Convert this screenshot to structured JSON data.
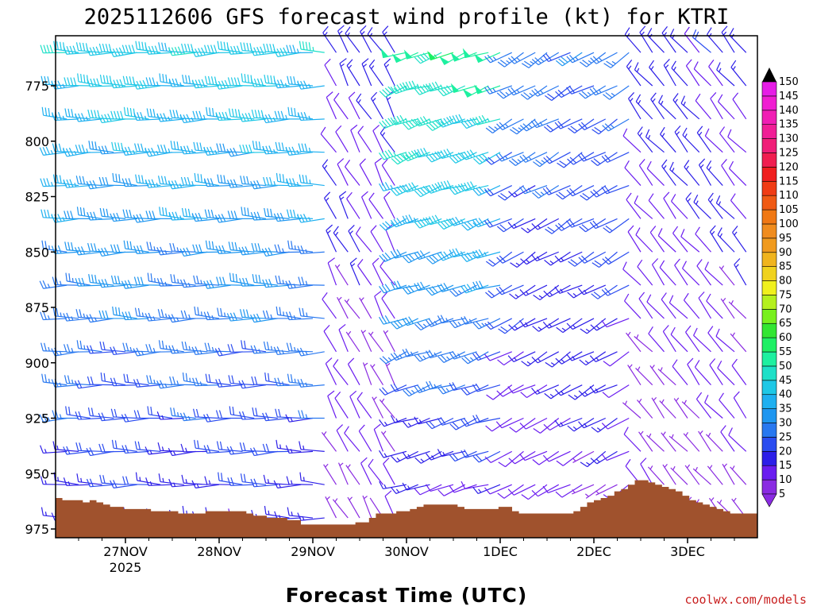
{
  "chart_data": {
    "type": "wind-barb-profile",
    "title": "2025112606 GFS forecast wind profile (kt) for KTRI",
    "xlabel": "Forecast Time (UTC)",
    "ylabel": "",
    "credit": "coolwx.com/models",
    "x_ticks": [
      {
        "label": "27NOV",
        "sublabel": "2025",
        "hour": 18
      },
      {
        "label": "28NOV",
        "sublabel": "",
        "hour": 42
      },
      {
        "label": "29NOV",
        "sublabel": "",
        "hour": 66
      },
      {
        "label": "30NOV",
        "sublabel": "",
        "hour": 90
      },
      {
        "label": "1DEC",
        "sublabel": "",
        "hour": 114
      },
      {
        "label": "2DEC",
        "sublabel": "",
        "hour": 138
      },
      {
        "label": "3DEC",
        "sublabel": "",
        "hour": 162
      }
    ],
    "xlim_hours": [
      0,
      180
    ],
    "y_ticks": [
      775,
      800,
      825,
      850,
      875,
      900,
      925,
      950,
      975
    ],
    "ylim_hpa": [
      980,
      755
    ],
    "levels_hpa": [
      760,
      775,
      790,
      805,
      820,
      835,
      850,
      865,
      880,
      895,
      910,
      925,
      940,
      955,
      970
    ],
    "time_step_hours": 3,
    "colorbar": {
      "levels": [
        5,
        10,
        15,
        20,
        25,
        30,
        35,
        40,
        45,
        50,
        55,
        60,
        65,
        70,
        75,
        80,
        85,
        90,
        95,
        100,
        105,
        110,
        115,
        120,
        125,
        130,
        135,
        140,
        145,
        150
      ],
      "colors": [
        "#8a2be2",
        "#6a1cf0",
        "#2c1ee8",
        "#2a4cf0",
        "#2878f0",
        "#1e96f0",
        "#1eb0f0",
        "#1ec8e6",
        "#1ee0c8",
        "#1ef0a0",
        "#1ef064",
        "#32e632",
        "#78f01e",
        "#b4f01e",
        "#f0f01e",
        "#f0d21e",
        "#f0b41e",
        "#f09a1e",
        "#f08c1e",
        "#f07814",
        "#f05a14",
        "#f03c14",
        "#f01e1e",
        "#f01e50",
        "#f01e78",
        "#f01e96",
        "#f01eb4",
        "#f01ed2",
        "#e61ee6",
        "#d21ef0"
      ]
    },
    "terrain_color": "#a0522d",
    "terrain_surface_hpa": [
      961,
      962,
      962,
      962,
      963,
      962,
      963,
      964,
      965,
      965,
      966,
      966,
      966,
      966,
      967,
      967,
      967,
      967,
      968,
      968,
      968,
      968,
      967,
      967,
      967,
      967,
      967,
      967,
      968,
      969,
      969,
      970,
      970,
      970,
      971,
      971,
      973,
      973,
      973,
      973,
      973,
      973,
      973,
      973,
      972,
      972,
      970,
      968,
      968,
      968,
      967,
      967,
      966,
      965,
      964,
      964,
      964,
      964,
      964,
      965,
      966,
      966,
      966,
      966,
      966,
      965,
      965,
      967,
      968,
      968,
      968,
      968,
      968,
      968,
      968,
      968,
      967,
      965,
      963,
      962,
      961,
      960,
      958,
      957,
      955,
      953,
      953,
      954,
      955,
      956,
      957,
      958,
      960,
      962,
      963,
      964,
      965,
      966,
      967,
      968,
      968,
      968,
      968
    ],
    "wind_regimes": [
      {
        "period_hours": [
          0,
          70
        ],
        "direction_deg": 270,
        "speed_kt_surface": 15,
        "speed_kt_aloft": 40
      },
      {
        "period_hours": [
          70,
          90
        ],
        "direction_deg": 330,
        "speed_kt_surface": 5,
        "speed_kt_aloft": 15
      },
      {
        "period_hours": [
          90,
          115
        ],
        "direction_deg": 250,
        "speed_kt_surface": 10,
        "speed_kt_aloft": 50
      },
      {
        "period_hours": [
          115,
          148
        ],
        "direction_deg": 240,
        "speed_kt_surface": 8,
        "speed_kt_aloft": 25
      },
      {
        "period_hours": [
          148,
          180
        ],
        "direction_deg": 320,
        "speed_kt_surface": 5,
        "speed_kt_aloft": 15
      }
    ]
  }
}
